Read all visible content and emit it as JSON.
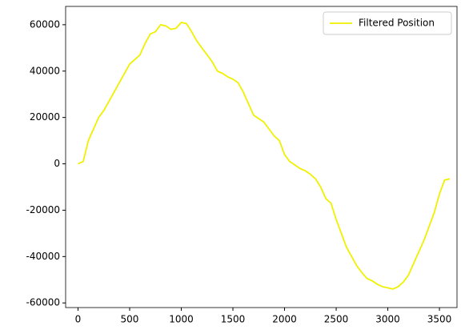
{
  "chart_data": {
    "type": "line",
    "x": [
      0,
      50,
      100,
      150,
      200,
      250,
      300,
      350,
      400,
      450,
      500,
      550,
      600,
      650,
      700,
      750,
      800,
      850,
      900,
      950,
      1000,
      1050,
      1100,
      1150,
      1200,
      1250,
      1300,
      1350,
      1400,
      1450,
      1500,
      1550,
      1600,
      1650,
      1700,
      1750,
      1800,
      1850,
      1900,
      1950,
      2000,
      2050,
      2100,
      2150,
      2200,
      2250,
      2300,
      2350,
      2400,
      2450,
      2500,
      2550,
      2600,
      2650,
      2700,
      2750,
      2800,
      2850,
      2900,
      2950,
      3000,
      3050,
      3100,
      3150,
      3200,
      3250,
      3300,
      3350,
      3400,
      3450,
      3500,
      3550,
      3600
    ],
    "series": [
      {
        "name": "Filtered Position",
        "color": "#f0f000",
        "values": [
          0,
          1000,
          10000,
          15000,
          20000,
          23000,
          27000,
          31000,
          35000,
          39000,
          43000,
          45000,
          47000,
          52000,
          56000,
          57000,
          60000,
          59500,
          58000,
          58500,
          61000,
          60500,
          57000,
          53000,
          50000,
          47000,
          44000,
          40000,
          39000,
          37500,
          36500,
          35000,
          31000,
          26000,
          21000,
          19500,
          18000,
          15000,
          12000,
          10000,
          4000,
          1000,
          -500,
          -2000,
          -3000,
          -4500,
          -6500,
          -10000,
          -15000,
          -17000,
          -24000,
          -30000,
          -36000,
          -40000,
          -44000,
          -47000,
          -49500,
          -50500,
          -52000,
          -53000,
          -53500,
          -54000,
          -53000,
          -51000,
          -48000,
          -43000,
          -38000,
          -33000,
          -27000,
          -21000,
          -13000,
          -7000,
          -6500
        ]
      }
    ],
    "xlim": [
      -120,
      3670
    ],
    "ylim": [
      -62000,
      67900
    ],
    "xticks": [
      0,
      500,
      1000,
      1500,
      2000,
      2500,
      3000,
      3500
    ],
    "yticks": [
      -60000,
      -40000,
      -20000,
      0,
      20000,
      40000,
      60000
    ],
    "legend": "upper right"
  }
}
